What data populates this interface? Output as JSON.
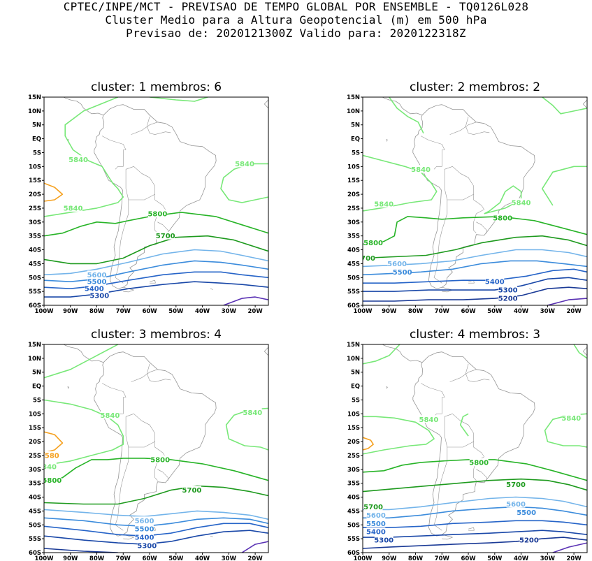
{
  "header": {
    "line1": "CPTEC/INPE/MCT - PREVISAO DE TEMPO GLOBAL POR ENSEMBLE - TQ0126L028",
    "line2": "Cluster Medio para a Altura Geopotencial (m) em 500 hPa",
    "line3": "Previsao de: 2020121300Z   Valido para: 2020122318Z"
  },
  "axes": {
    "lat_ticks": [
      "15N",
      "10N",
      "5N",
      "EQ",
      "5S",
      "10S",
      "15S",
      "20S",
      "25S",
      "30S",
      "35S",
      "40S",
      "45S",
      "50S",
      "55S",
      "60S"
    ],
    "lon_ticks": [
      "100W",
      "90W",
      "80W",
      "70W",
      "60W",
      "50W",
      "40W",
      "30W",
      "20W"
    ],
    "lat_range": [
      -60,
      15
    ],
    "lon_range": [
      -100,
      -15
    ]
  },
  "colors": {
    "5840": "#78e878",
    "5800": "#28b428",
    "5700": "#1e9a1e",
    "5600": "#73b4ea",
    "5500": "#3c8cdc",
    "5400": "#2664c8",
    "5300": "#1a48a8",
    "5200": "#1a3a96",
    "5100": "#5a32b4",
    "high": "#f5a01e",
    "coast": "#969696"
  },
  "panels": [
    {
      "title": "cluster: 1   membros: 6",
      "labels": [
        {
          "text": "5840",
          "lon": -87,
          "lat": -7.5,
          "color": "5840"
        },
        {
          "text": "5840",
          "lon": -24,
          "lat": -9,
          "color": "5840"
        },
        {
          "text": "5840",
          "lon": -89,
          "lat": -25,
          "color": "5840"
        },
        {
          "text": "5800",
          "lon": -57,
          "lat": -27,
          "color": "5800"
        },
        {
          "text": "5700",
          "lon": -54,
          "lat": -35,
          "color": "5700"
        },
        {
          "text": "5600",
          "lon": -80,
          "lat": -49,
          "color": "5600"
        },
        {
          "text": "5500",
          "lon": -80,
          "lat": -51.5,
          "color": "5500"
        },
        {
          "text": "5400",
          "lon": -81,
          "lat": -54,
          "color": "5400"
        },
        {
          "text": "5300",
          "lon": -79,
          "lat": -56.5,
          "color": "5300"
        }
      ]
    },
    {
      "title": "cluster: 2   membros: 2",
      "labels": [
        {
          "text": "5840",
          "lon": -78,
          "lat": -11,
          "color": "5840"
        },
        {
          "text": "5840",
          "lon": -92,
          "lat": -23.5,
          "color": "5840"
        },
        {
          "text": "5840",
          "lon": -40,
          "lat": -23,
          "color": "5840"
        },
        {
          "text": "5800",
          "lon": -47,
          "lat": -28.5,
          "color": "5800"
        },
        {
          "text": "5800",
          "lon": -96,
          "lat": -37.5,
          "color": "5800"
        },
        {
          "text": "700",
          "lon": -98,
          "lat": -43,
          "color": "5700"
        },
        {
          "text": "5600",
          "lon": -87,
          "lat": -45,
          "color": "5600"
        },
        {
          "text": "5500",
          "lon": -85,
          "lat": -48,
          "color": "5500"
        },
        {
          "text": "5400",
          "lon": -50,
          "lat": -51.5,
          "color": "5400"
        },
        {
          "text": "5300",
          "lon": -45,
          "lat": -54.5,
          "color": "5300"
        },
        {
          "text": "5200",
          "lon": -45,
          "lat": -57.5,
          "color": "5200"
        }
      ]
    },
    {
      "title": "cluster: 3   membros: 4",
      "labels": [
        {
          "text": "5840",
          "lon": -75,
          "lat": -10.5,
          "color": "5840"
        },
        {
          "text": "5840",
          "lon": -21,
          "lat": -9.5,
          "color": "5840"
        },
        {
          "text": "580",
          "lon": -97,
          "lat": -25,
          "color": "high"
        },
        {
          "text": "840",
          "lon": -98,
          "lat": -29,
          "color": "5840"
        },
        {
          "text": "5800",
          "lon": -56,
          "lat": -26.5,
          "color": "5800"
        },
        {
          "text": "5800",
          "lon": -97,
          "lat": -34,
          "color": "5800"
        },
        {
          "text": "5700",
          "lon": -44,
          "lat": -37.5,
          "color": "5700"
        },
        {
          "text": "5600",
          "lon": -62,
          "lat": -48.5,
          "color": "5600"
        },
        {
          "text": "5500",
          "lon": -62,
          "lat": -51.5,
          "color": "5500"
        },
        {
          "text": "5400",
          "lon": -62,
          "lat": -54.5,
          "color": "5400"
        },
        {
          "text": "5300",
          "lon": -61,
          "lat": -57.5,
          "color": "5300"
        }
      ]
    },
    {
      "title": "cluster: 4   membros: 3",
      "labels": [
        {
          "text": "5840",
          "lon": -75,
          "lat": -12,
          "color": "5840"
        },
        {
          "text": "5840",
          "lon": -21,
          "lat": -11.5,
          "color": "5840"
        },
        {
          "text": "5800",
          "lon": -56,
          "lat": -27.5,
          "color": "5800"
        },
        {
          "text": "5700",
          "lon": -42,
          "lat": -35.5,
          "color": "5700"
        },
        {
          "text": "5700",
          "lon": -96,
          "lat": -43.5,
          "color": "5700"
        },
        {
          "text": "5600",
          "lon": -42,
          "lat": -42.5,
          "color": "5600"
        },
        {
          "text": "5600",
          "lon": -95,
          "lat": -46.5,
          "color": "5600"
        },
        {
          "text": "5500",
          "lon": -38,
          "lat": -45.5,
          "color": "5500"
        },
        {
          "text": "5500",
          "lon": -95,
          "lat": -49.5,
          "color": "5500"
        },
        {
          "text": "5400",
          "lon": -95,
          "lat": -52.5,
          "color": "5400"
        },
        {
          "text": "5300",
          "lon": -92,
          "lat": -55.5,
          "color": "5300"
        },
        {
          "text": "5200",
          "lon": -37,
          "lat": -55.5,
          "color": "5200"
        }
      ]
    }
  ]
}
